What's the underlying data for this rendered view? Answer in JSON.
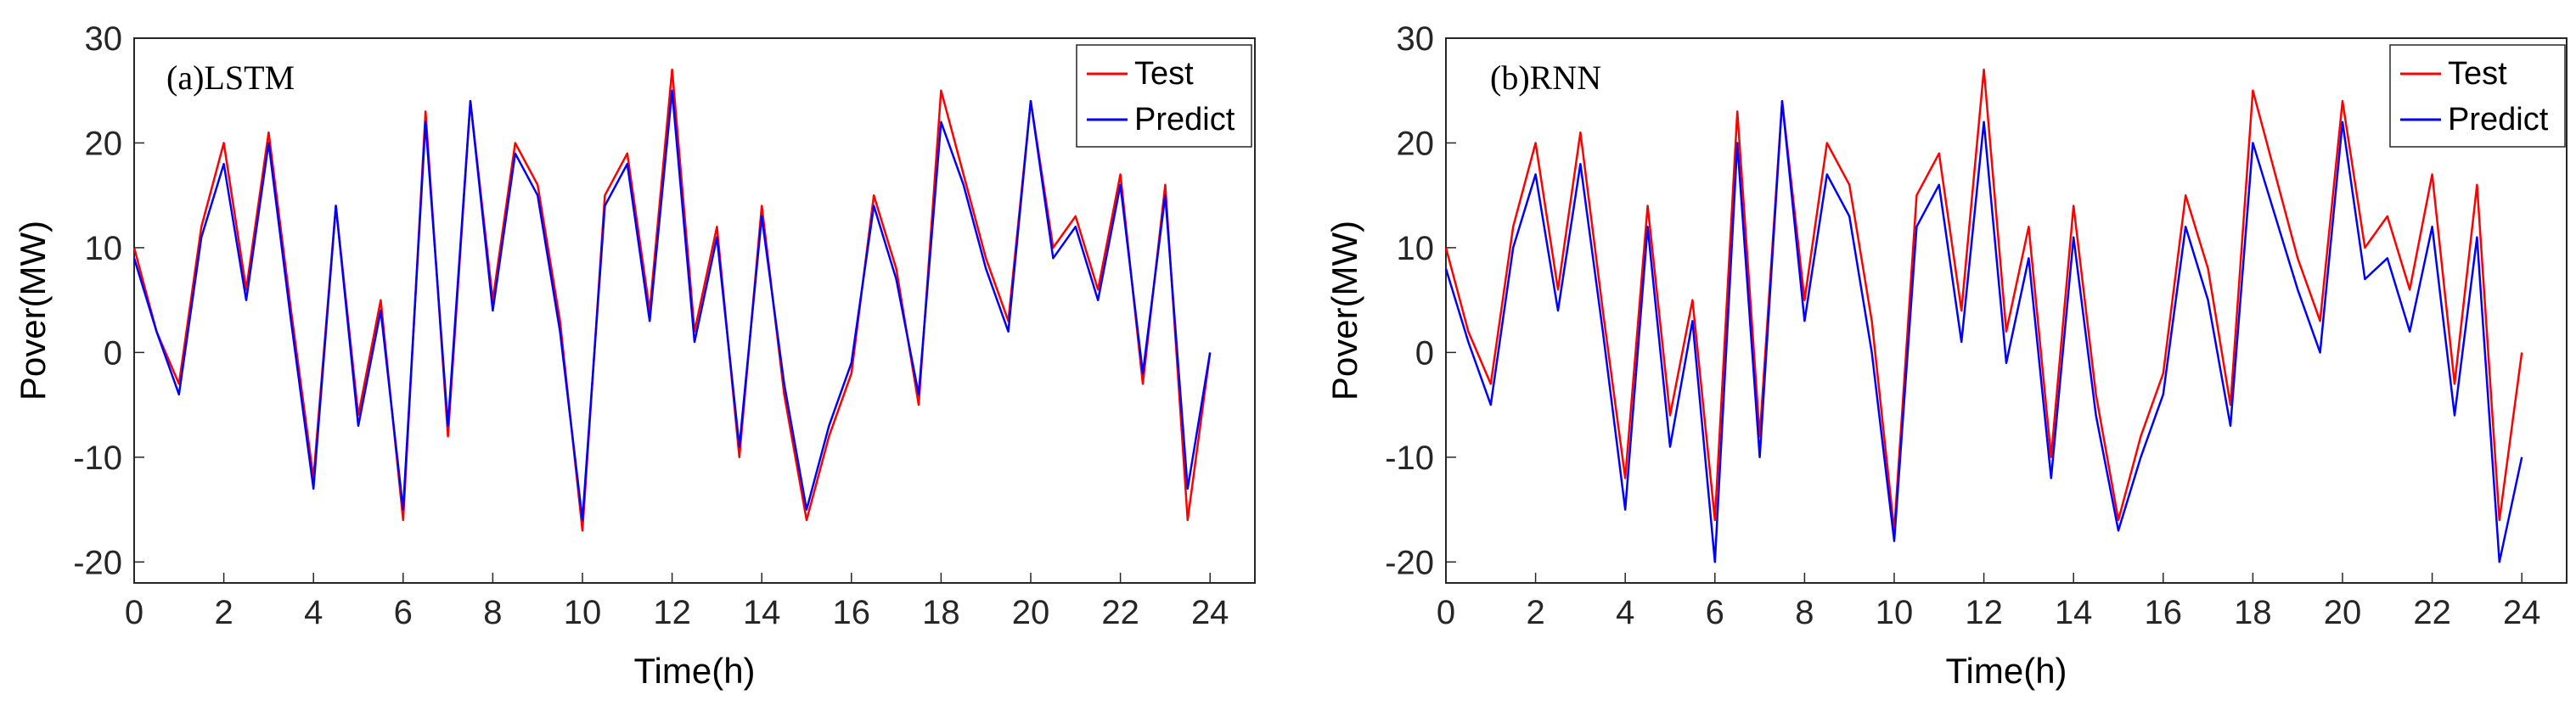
{
  "chart_data": [
    {
      "type": "line",
      "panel_label": "(a)LSTM",
      "xlabel": "Time(h)",
      "ylabel": "Pover(MW)",
      "xlim": [
        0,
        25
      ],
      "ylim": [
        -22,
        30
      ],
      "xticks": [
        0,
        2,
        4,
        6,
        8,
        10,
        12,
        14,
        16,
        18,
        20,
        22,
        24
      ],
      "yticks": [
        -20,
        -10,
        0,
        10,
        20,
        30
      ],
      "legend_position": "top-right",
      "series": [
        {
          "name": "Test",
          "color": "#ff0000"
        },
        {
          "name": "Predict",
          "color": "#0000ff"
        }
      ],
      "x": [
        0.0,
        0.5,
        1.0,
        1.5,
        2.0,
        2.5,
        3.0,
        3.5,
        4.0,
        4.5,
        5.0,
        5.5,
        6.0,
        6.5,
        7.0,
        7.5,
        8.0,
        8.5,
        9.0,
        9.5,
        10.0,
        10.5,
        11.0,
        11.5,
        12.0,
        12.5,
        13.0,
        13.5,
        14.0,
        14.5,
        15.0,
        15.5,
        16.0,
        16.5,
        17.0,
        17.5,
        18.0,
        18.5,
        19.0,
        19.5,
        20.0,
        20.5,
        21.0,
        21.5,
        22.0,
        22.5,
        23.0,
        23.5,
        24.0
      ],
      "test_values": [
        10,
        2,
        -3,
        12,
        20,
        6,
        21,
        4,
        -12,
        14,
        -6,
        5,
        -16,
        23,
        -8,
        24,
        5,
        20,
        16,
        3,
        -17,
        15,
        19,
        4,
        27,
        2,
        12,
        -10,
        14,
        -4,
        -16,
        -8,
        -2,
        15,
        8,
        -5,
        25,
        17,
        9,
        3,
        24,
        10,
        13,
        6,
        17,
        -3,
        16,
        -16,
        0
      ],
      "predict_values": [
        9,
        2,
        -4,
        11,
        18,
        5,
        20,
        3,
        -13,
        14,
        -7,
        4,
        -15,
        22,
        -7,
        24,
        4,
        19,
        15,
        2,
        -16,
        14,
        18,
        3,
        25,
        1,
        11,
        -9,
        13,
        -3,
        -15,
        -7,
        -1,
        14,
        7,
        -4,
        22,
        16,
        8,
        2,
        24,
        9,
        12,
        5,
        16,
        -2,
        15,
        -13,
        0
      ]
    },
    {
      "type": "line",
      "panel_label": "(b)RNN",
      "xlabel": "Time(h)",
      "ylabel": "Pover(MW)",
      "xlim": [
        0,
        25
      ],
      "ylim": [
        -22,
        30
      ],
      "xticks": [
        0,
        2,
        4,
        6,
        8,
        10,
        12,
        14,
        16,
        18,
        20,
        22,
        24
      ],
      "yticks": [
        -20,
        -10,
        0,
        10,
        20,
        30
      ],
      "legend_position": "top-right",
      "series": [
        {
          "name": "Test",
          "color": "#ff0000"
        },
        {
          "name": "Predict",
          "color": "#0000ff"
        }
      ],
      "x": [
        0.0,
        0.5,
        1.0,
        1.5,
        2.0,
        2.5,
        3.0,
        3.5,
        4.0,
        4.5,
        5.0,
        5.5,
        6.0,
        6.5,
        7.0,
        7.5,
        8.0,
        8.5,
        9.0,
        9.5,
        10.0,
        10.5,
        11.0,
        11.5,
        12.0,
        12.5,
        13.0,
        13.5,
        14.0,
        14.5,
        15.0,
        15.5,
        16.0,
        16.5,
        17.0,
        17.5,
        18.0,
        18.5,
        19.0,
        19.5,
        20.0,
        20.5,
        21.0,
        21.5,
        22.0,
        22.5,
        23.0,
        23.5,
        24.0
      ],
      "test_values": [
        10,
        2,
        -3,
        12,
        20,
        6,
        21,
        4,
        -12,
        14,
        -6,
        5,
        -16,
        23,
        -8,
        24,
        5,
        20,
        16,
        3,
        -17,
        15,
        19,
        4,
        27,
        2,
        12,
        -10,
        14,
        -4,
        -16,
        -8,
        -2,
        15,
        8,
        -5,
        25,
        17,
        9,
        3,
        24,
        10,
        13,
        6,
        17,
        -3,
        16,
        -16,
        0
      ],
      "predict_values": [
        8,
        1,
        -5,
        10,
        17,
        4,
        18,
        2,
        -15,
        12,
        -9,
        3,
        -20,
        20,
        -10,
        24,
        3,
        17,
        13,
        0,
        -18,
        12,
        16,
        1,
        22,
        -1,
        9,
        -12,
        11,
        -6,
        -17,
        -10,
        -4,
        12,
        5,
        -7,
        20,
        13,
        6,
        0,
        22,
        7,
        9,
        2,
        12,
        -6,
        11,
        -20,
        -10
      ]
    }
  ]
}
